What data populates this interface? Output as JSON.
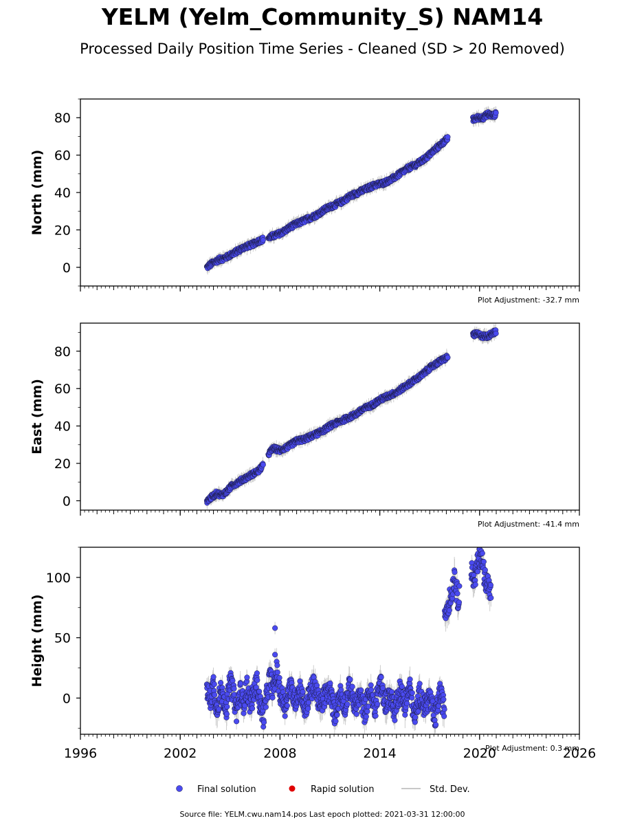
{
  "title": "YELM (Yelm_Community_S) NAM14",
  "subtitle": "Processed Daily Position Time Series - Cleaned (SD > 20 Removed)",
  "footer": "Source file: YELM.cwu.nam14.pos  Last epoch plotted: 2021-03-31 12:00:00",
  "colors": {
    "final": "#4a4af0",
    "rapid": "#e00000",
    "stddev": "#c8c8c8",
    "marker_edge": "#1a1a40"
  },
  "legend": {
    "final": "Final solution",
    "rapid": "Rapid solution",
    "stddev": "Std. Dev."
  },
  "chart_data": [
    {
      "type": "scatter",
      "ylabel": "North (mm)",
      "adjustment": "Plot Adjustment: -32.7 mm",
      "xlim": [
        1996,
        2026
      ],
      "ylim": [
        -10,
        90
      ],
      "yticks": [
        0,
        20,
        40,
        60,
        80
      ],
      "xticks": [
        1996,
        2002,
        2008,
        2014,
        2020,
        2026
      ],
      "series": [
        {
          "x": [
            2003.6,
            2003.9,
            2004.3,
            2004.7,
            2005.1,
            2005.5,
            2005.9,
            2006.3,
            2006.7,
            2007.0
          ],
          "y": [
            0,
            2,
            4,
            5,
            7,
            9,
            11,
            12,
            14,
            15
          ]
        },
        {
          "x": [
            2007.3,
            2007.7,
            2008.2,
            2008.7,
            2009.2,
            2009.7,
            2010.2,
            2010.7,
            2011.2,
            2011.7,
            2012.2,
            2012.7,
            2013.2,
            2013.7,
            2014.2,
            2014.7,
            2015.2,
            2015.7,
            2016.2,
            2016.7,
            2017.2,
            2017.7,
            2018.1
          ],
          "y": [
            16,
            17,
            19,
            22,
            24,
            26,
            28,
            31,
            33,
            35,
            38,
            40,
            42,
            44,
            45,
            47,
            50,
            53,
            55,
            58,
            62,
            66,
            69
          ]
        },
        {
          "x": [
            2019.6,
            2019.9,
            2020.2,
            2020.5,
            2020.8,
            2021.0
          ],
          "y": [
            79,
            80,
            80,
            82,
            81,
            82
          ]
        }
      ]
    },
    {
      "type": "scatter",
      "ylabel": "East (mm)",
      "adjustment": "Plot Adjustment: -41.4 mm",
      "xlim": [
        1996,
        2026
      ],
      "ylim": [
        -5,
        95
      ],
      "yticks": [
        0,
        20,
        40,
        60,
        80
      ],
      "xticks": [
        1996,
        2002,
        2008,
        2014,
        2020,
        2026
      ],
      "series": [
        {
          "x": [
            2003.6,
            2003.9,
            2004.2,
            2004.5,
            2004.8,
            2005.1,
            2005.5,
            2005.9,
            2006.3,
            2006.7,
            2007.0
          ],
          "y": [
            0,
            2,
            4,
            3,
            5,
            8,
            10,
            12,
            14,
            16,
            19
          ]
        },
        {
          "x": [
            2007.3,
            2007.6,
            2008.0,
            2008.5,
            2009.0,
            2009.5,
            2010.0,
            2010.5,
            2011.0,
            2011.5,
            2012.0,
            2012.5,
            2013.0,
            2013.5,
            2014.0,
            2014.5,
            2015.0,
            2015.5,
            2016.0,
            2016.5,
            2017.0,
            2017.5,
            2018.1
          ],
          "y": [
            25,
            28,
            27,
            29,
            32,
            33,
            35,
            37,
            40,
            42,
            44,
            46,
            49,
            51,
            54,
            56,
            58,
            61,
            64,
            67,
            71,
            74,
            77
          ]
        },
        {
          "x": [
            2019.6,
            2019.9,
            2020.2,
            2020.5,
            2020.8,
            2021.0
          ],
          "y": [
            89,
            89,
            88,
            88,
            90,
            90
          ]
        }
      ]
    },
    {
      "type": "scatter",
      "ylabel": "Height (mm)",
      "adjustment": "Plot Adjustment: 0.3 mm",
      "xlim": [
        1996,
        2026
      ],
      "ylim": [
        -30,
        125
      ],
      "yticks": [
        0,
        50,
        100
      ],
      "xticks": [
        1996,
        2002,
        2008,
        2014,
        2020,
        2026
      ],
      "series": [
        {
          "x": [
            2003.6,
            2003.8,
            2004.0,
            2004.2,
            2004.4,
            2004.6,
            2004.8,
            2005.0,
            2005.2,
            2005.4,
            2005.6,
            2005.8,
            2006.0,
            2006.2,
            2006.4,
            2006.6,
            2006.8,
            2007.0,
            2007.4,
            2007.6,
            2007.8,
            2008.0,
            2008.3,
            2008.6,
            2008.9,
            2009.2,
            2009.5,
            2009.8,
            2010.1,
            2010.4,
            2010.7,
            2011.0,
            2011.3,
            2011.6,
            2011.9,
            2012.2,
            2012.5,
            2012.8,
            2013.1,
            2013.4,
            2013.7,
            2014.0,
            2014.3,
            2014.6,
            2014.9,
            2015.2,
            2015.5,
            2015.8,
            2016.1,
            2016.4,
            2016.7,
            2017.0,
            2017.3,
            2017.6,
            2017.9
          ],
          "y": [
            8,
            -2,
            12,
            -10,
            5,
            0,
            -8,
            15,
            3,
            -12,
            6,
            -5,
            10,
            -4,
            2,
            14,
            -6,
            -15,
            18,
            6,
            22,
            5,
            -6,
            10,
            -2,
            8,
            -10,
            4,
            12,
            -8,
            2,
            6,
            -14,
            4,
            -6,
            10,
            -8,
            2,
            -12,
            6,
            -10,
            14,
            -4,
            2,
            -10,
            8,
            -6,
            10,
            -18,
            4,
            -8,
            2,
            -20,
            5,
            -10
          ]
        },
        {
          "x": [
            2007.7,
            2007.7
          ],
          "y": [
            58,
            36
          ]
        },
        {
          "x": [
            2017.9,
            2018.1,
            2018.3,
            2018.5,
            2018.7,
            2018.8
          ],
          "y": [
            70,
            78,
            85,
            103,
            80,
            92
          ]
        },
        {
          "x": [
            2019.5,
            2019.7,
            2019.9,
            2020.1,
            2020.3,
            2020.5,
            2020.7
          ],
          "y": [
            105,
            98,
            112,
            120,
            100,
            95,
            85
          ]
        }
      ]
    }
  ]
}
